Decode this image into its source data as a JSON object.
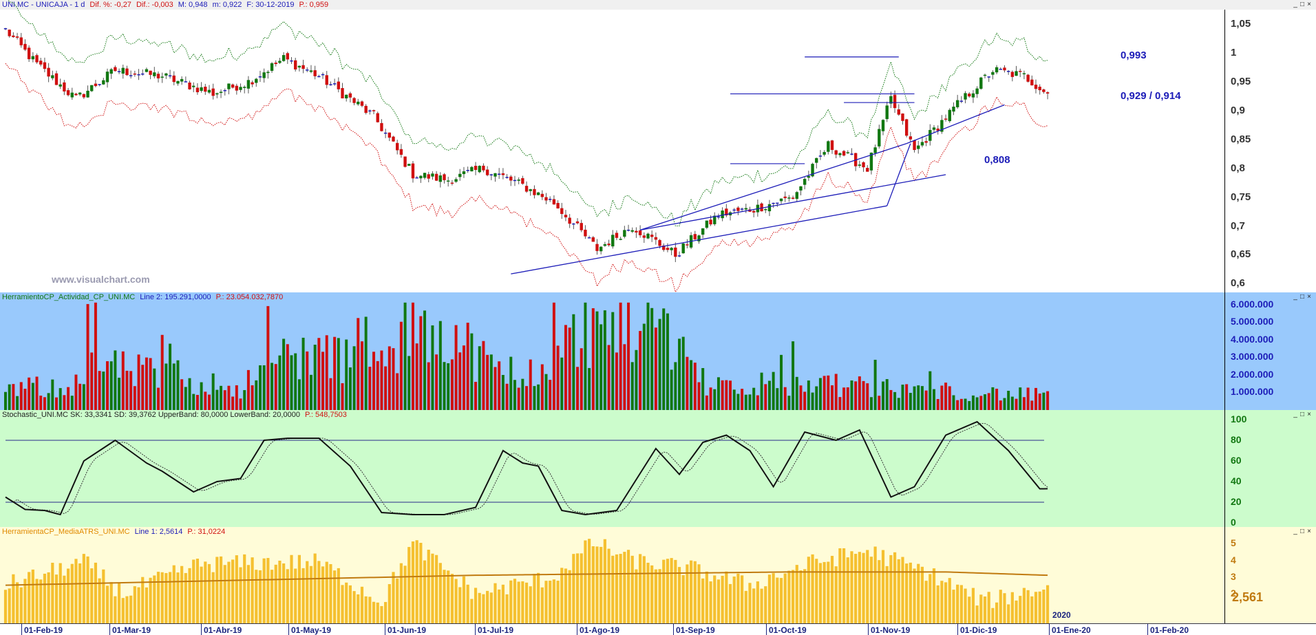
{
  "panels": {
    "price": {
      "header": [
        {
          "text": "UNI.MC - UNICAJA -  1 d",
          "color": "#1c1cb8"
        },
        {
          "text": "Dif. %: -0,27",
          "color": "#d01010"
        },
        {
          "text": "Dif.: -0,003",
          "color": "#d01010"
        },
        {
          "text": "M: 0,948",
          "color": "#1c1cb8"
        },
        {
          "text": "m: 0,922",
          "color": "#1c1cb8"
        },
        {
          "text": "F: 30-12-2019",
          "color": "#1c1cb8"
        },
        {
          "text": "P.: 0,959",
          "color": "#d01010"
        }
      ],
      "watermark": "www.visualchart.com",
      "yticks": [
        "1,05",
        "1",
        "0,95",
        "0,9",
        "0,85",
        "0,8",
        "0,75",
        "0,7",
        "0,65",
        "0,6"
      ],
      "levels": [
        "0,993",
        "0,929 / 0,914",
        "0,808"
      ]
    },
    "activity": {
      "header": [
        {
          "text": "HerramientoCP_Actividad_CP_UNI.MC",
          "color": "#117711"
        },
        {
          "text": "Line 2: 195.291,0000",
          "color": "#1c1cb8"
        },
        {
          "text": "P.: 23.054.032,7870",
          "color": "#d01010"
        }
      ],
      "yticks": [
        "6.000.000",
        "5.000.000",
        "4.000.000",
        "3.000.000",
        "2.000.000",
        "1.000.000"
      ]
    },
    "stochastic": {
      "header": [
        {
          "text": "Stochastic_UNI.MC  SK: 33,3341  SD: 39,3762  UpperBand: 80,0000  LowerBand: 20,0000",
          "color": "#222222"
        },
        {
          "text": "P.: 548,7503",
          "color": "#d01010"
        }
      ],
      "yticks": [
        "100",
        "80",
        "60",
        "40",
        "20",
        "0"
      ]
    },
    "atr": {
      "header": [
        {
          "text": "HerramientaCP_MediaATRS_UNI.MC",
          "color": "#e08a00"
        },
        {
          "text": "Line 1: 2,5614",
          "color": "#1c1cb8"
        },
        {
          "text": "P.: 31,0224",
          "color": "#d01010"
        }
      ],
      "yticks": [
        "5",
        "4",
        "3",
        "2"
      ],
      "last_value": "2,561"
    }
  },
  "x_axis": {
    "labels": [
      "01-Feb-19",
      "01-Mar-19",
      "01-Abr-19",
      "01-May-19",
      "01-Jun-19",
      "01-Jul-19",
      "01-Ago-19",
      "01-Sep-19",
      "01-Oct-19",
      "01-Nov-19",
      "01-Dic-19",
      "01-Ene-20",
      "01-Feb-20"
    ],
    "year_label": "2020"
  },
  "colors": {
    "up": "#117711",
    "down": "#d01010",
    "doji": "#1c1cb8",
    "upper_band": "#117711",
    "lower_band": "#d01010",
    "trendline": "#1c1cb8",
    "atr_bar": "#f5c030",
    "atr_avg": "#c07a10"
  },
  "chart_data": [
    {
      "type": "candlestick",
      "ylim": [
        0.585,
        1.075
      ],
      "close_anchors": [
        [
          0,
          1.04
        ],
        [
          8,
          0.98
        ],
        [
          18,
          0.92
        ],
        [
          28,
          0.97
        ],
        [
          40,
          0.96
        ],
        [
          53,
          0.93
        ],
        [
          62,
          0.95
        ],
        [
          71,
          0.99
        ],
        [
          80,
          0.96
        ],
        [
          94,
          0.89
        ],
        [
          104,
          0.79
        ],
        [
          113,
          0.78
        ],
        [
          122,
          0.8
        ],
        [
          132,
          0.77
        ],
        [
          140,
          0.74
        ],
        [
          151,
          0.66
        ],
        [
          160,
          0.7
        ],
        [
          171,
          0.65
        ],
        [
          182,
          0.72
        ],
        [
          191,
          0.73
        ],
        [
          201,
          0.75
        ],
        [
          210,
          0.84
        ],
        [
          220,
          0.8
        ],
        [
          226,
          0.92
        ],
        [
          232,
          0.83
        ],
        [
          243,
          0.91
        ],
        [
          252,
          0.97
        ],
        [
          260,
          0.96
        ],
        [
          266,
          0.93
        ]
      ],
      "levels": [
        0.993,
        0.929,
        0.914,
        0.808
      ],
      "bands": "upper and lower envelope bands around price"
    },
    {
      "type": "bar",
      "name_hint": "activity volume",
      "ylim": [
        0,
        6300000
      ],
      "value_anchors": [
        [
          0,
          1400000
        ],
        [
          20,
          1500000
        ],
        [
          21,
          5000000
        ],
        [
          23,
          2800000
        ],
        [
          60,
          1400000
        ],
        [
          72,
          3600000
        ],
        [
          98,
          3000000
        ],
        [
          104,
          5500000
        ],
        [
          110,
          5600000
        ],
        [
          130,
          1500000
        ],
        [
          148,
          5000000
        ],
        [
          166,
          5800000
        ],
        [
          180,
          1500000
        ],
        [
          200,
          1700000
        ],
        [
          220,
          1400000
        ],
        [
          266,
          900000
        ]
      ]
    },
    {
      "type": "line",
      "ylim": [
        0,
        100
      ],
      "upper_band": 80,
      "lower_band": 20,
      "sk_anchors": [
        [
          0,
          25
        ],
        [
          5,
          13
        ],
        [
          10,
          12
        ],
        [
          14,
          8
        ],
        [
          20,
          60
        ],
        [
          28,
          80
        ],
        [
          36,
          58
        ],
        [
          40,
          50
        ],
        [
          48,
          30
        ],
        [
          54,
          40
        ],
        [
          60,
          43
        ],
        [
          66,
          80
        ],
        [
          72,
          82
        ],
        [
          80,
          82
        ],
        [
          88,
          55
        ],
        [
          96,
          10
        ],
        [
          104,
          8
        ],
        [
          112,
          8
        ],
        [
          120,
          15
        ],
        [
          127,
          70
        ],
        [
          132,
          58
        ],
        [
          136,
          55
        ],
        [
          142,
          12
        ],
        [
          148,
          8
        ],
        [
          156,
          12
        ],
        [
          166,
          72
        ],
        [
          172,
          47
        ],
        [
          178,
          78
        ],
        [
          184,
          85
        ],
        [
          190,
          70
        ],
        [
          196,
          35
        ],
        [
          204,
          88
        ],
        [
          212,
          80
        ],
        [
          218,
          90
        ],
        [
          226,
          25
        ],
        [
          232,
          35
        ],
        [
          240,
          85
        ],
        [
          248,
          98
        ],
        [
          256,
          70
        ],
        [
          264,
          33
        ]
      ]
    },
    {
      "type": "bar",
      "name_hint": "average ATR",
      "ylim": [
        0.2,
        5.6
      ],
      "value_anchors": [
        [
          0,
          2.5
        ],
        [
          20,
          3.9
        ],
        [
          30,
          2.0
        ],
        [
          50,
          3.8
        ],
        [
          80,
          3.9
        ],
        [
          96,
          1.5
        ],
        [
          104,
          5.0
        ],
        [
          120,
          2.0
        ],
        [
          140,
          3.0
        ],
        [
          150,
          5.1
        ],
        [
          160,
          4.0
        ],
        [
          175,
          3.5
        ],
        [
          190,
          2.5
        ],
        [
          205,
          3.8
        ],
        [
          220,
          4.6
        ],
        [
          235,
          3.3
        ],
        [
          250,
          1.5
        ],
        [
          266,
          2.4
        ]
      ],
      "avg_anchors": [
        [
          0,
          2.5
        ],
        [
          60,
          2.8
        ],
        [
          120,
          3.1
        ],
        [
          200,
          3.3
        ],
        [
          240,
          3.3
        ],
        [
          266,
          3.1
        ]
      ]
    }
  ]
}
